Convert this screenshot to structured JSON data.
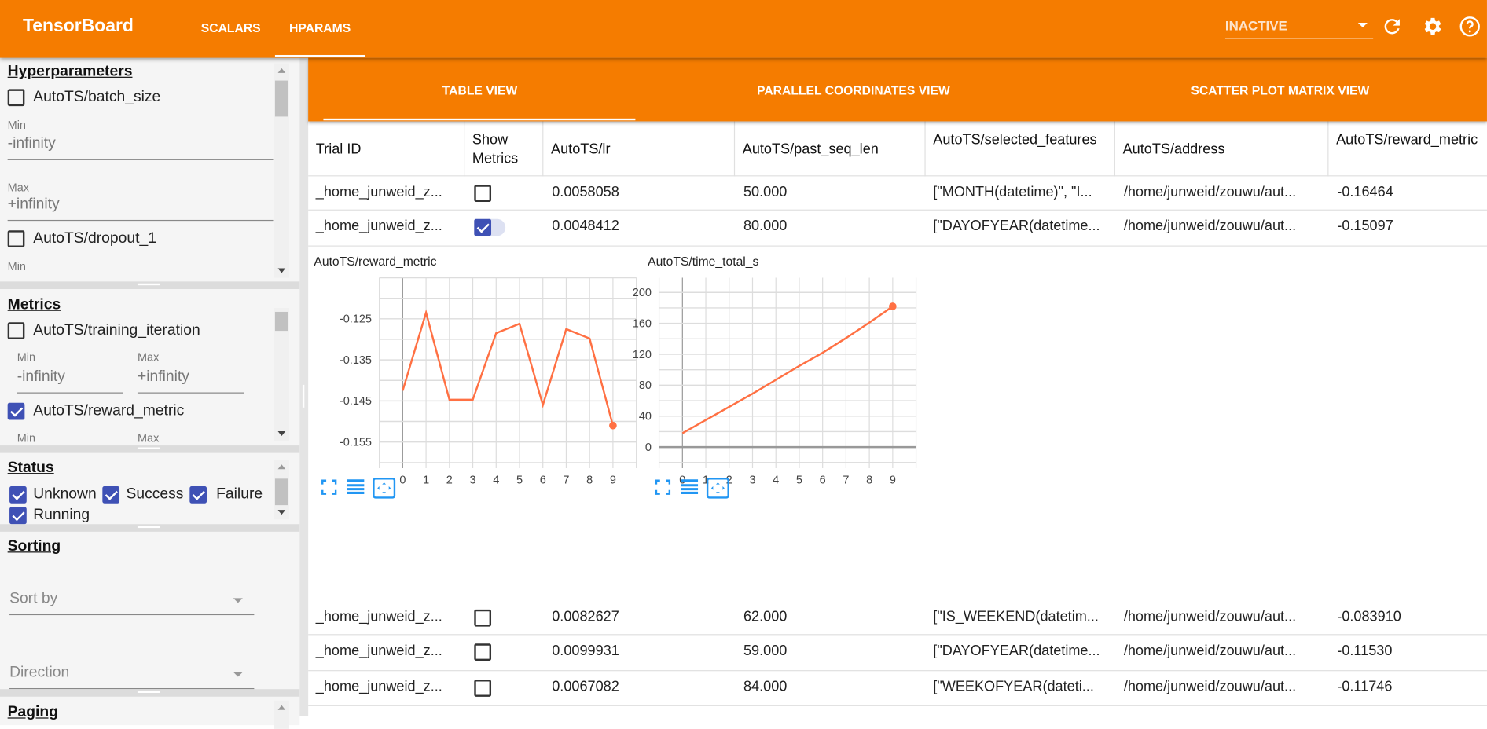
{
  "header": {
    "brand": "TensorBoard",
    "tabs": [
      {
        "label": "SCALARS",
        "active": false
      },
      {
        "label": "HPARAMS",
        "active": true
      }
    ],
    "run_select": "INACTIVE",
    "icons": [
      "refresh-icon",
      "settings-gear-icon",
      "help-icon"
    ]
  },
  "sidebar": {
    "hyperparameters": {
      "title": "Hyperparameters",
      "items": [
        {
          "label": "AutoTS/batch_size",
          "checked": false,
          "min_label": "Min",
          "min": "-infinity",
          "max_label": "Max",
          "max": "+infinity"
        },
        {
          "label": "AutoTS/dropout_1",
          "checked": false,
          "min_label": "Min"
        }
      ]
    },
    "metrics": {
      "title": "Metrics",
      "items": [
        {
          "label": "AutoTS/training_iteration",
          "checked": false,
          "min_label": "Min",
          "min": "-infinity",
          "max_label": "Max",
          "max": "+infinity"
        },
        {
          "label": "AutoTS/reward_metric",
          "checked": true,
          "min_label": "Min",
          "max_label": "Max"
        }
      ]
    },
    "status": {
      "title": "Status",
      "items": [
        {
          "label": "Unknown",
          "checked": true
        },
        {
          "label": "Success",
          "checked": true
        },
        {
          "label": "Failure",
          "checked": true
        },
        {
          "label": "Running",
          "checked": true
        }
      ]
    },
    "sorting": {
      "title": "Sorting",
      "sort_by": "Sort by",
      "direction": "Direction"
    },
    "paging": {
      "title": "Paging"
    }
  },
  "subtabs": [
    {
      "label": "TABLE VIEW",
      "active": true
    },
    {
      "label": "PARALLEL COORDINATES VIEW",
      "active": false
    },
    {
      "label": "SCATTER PLOT MATRIX VIEW",
      "active": false
    }
  ],
  "table": {
    "headers": [
      "Trial ID",
      "Show Metrics",
      "AutoTS/lr",
      "AutoTS/past_seq_len",
      "AutoTS/selected_features",
      "AutoTS/address",
      "AutoTS/reward_metric"
    ],
    "rows": [
      {
        "trial": "_home_junweid_z...",
        "show": false,
        "lr": "0.0058058",
        "past_seq_len": "50.000",
        "features": "[\"MONTH(datetime)\", \"I...",
        "address": "/home/junweid/zouwu/aut...",
        "reward": "-0.16464"
      },
      {
        "trial": "_home_junweid_z...",
        "show": true,
        "lr": "0.0048412",
        "past_seq_len": "80.000",
        "features": "[\"DAYOFYEAR(datetime...",
        "address": "/home/junweid/zouwu/aut...",
        "reward": "-0.15097"
      },
      {
        "trial": "_home_junweid_z...",
        "show": false,
        "lr": "0.0082627",
        "past_seq_len": "62.000",
        "features": "[\"IS_WEEKEND(datetim...",
        "address": "/home/junweid/zouwu/aut...",
        "reward": "-0.083910"
      },
      {
        "trial": "_home_junweid_z...",
        "show": false,
        "lr": "0.0099931",
        "past_seq_len": "59.000",
        "features": "[\"DAYOFYEAR(datetime...",
        "address": "/home/junweid/zouwu/aut...",
        "reward": "-0.11530"
      },
      {
        "trial": "_home_junweid_z...",
        "show": false,
        "lr": "0.0067082",
        "past_seq_len": "84.000",
        "features": "[\"WEEKOFYEAR(dateti...",
        "address": "/home/junweid/zouwu/aut...",
        "reward": "-0.11746"
      }
    ]
  },
  "colors": {
    "accent": "#f57c00",
    "line": "#ff7043",
    "checkbox": "#3f51b5",
    "tool": "#2196f3"
  },
  "chart_data": [
    {
      "type": "line",
      "title": "AutoTS/reward_metric",
      "x": [
        0,
        1,
        2,
        3,
        4,
        5,
        6,
        7,
        8,
        9
      ],
      "y": [
        -0.1425,
        -0.1235,
        -0.1447,
        -0.1447,
        -0.1285,
        -0.1262,
        -0.146,
        -0.1275,
        -0.1298,
        -0.151
      ],
      "xlim": [
        -1,
        10
      ],
      "ylim": [
        -0.16,
        -0.115
      ],
      "yticks": [
        -0.125,
        -0.135,
        -0.145,
        -0.155
      ],
      "ytick_labels": [
        "-0.125",
        "-0.135",
        "-0.145",
        "-0.155"
      ],
      "xticks": [
        0,
        1,
        2,
        3,
        4,
        5,
        6,
        7,
        8,
        9
      ],
      "grid": true
    },
    {
      "type": "line",
      "title": "AutoTS/time_total_s",
      "x": [
        0,
        1,
        2,
        3,
        4,
        5,
        6,
        7,
        8,
        9
      ],
      "y": [
        18,
        35,
        52,
        69,
        87,
        105,
        122,
        141,
        161,
        182
      ],
      "xlim": [
        -1,
        10
      ],
      "ylim": [
        -20,
        219
      ],
      "yticks": [
        0,
        40,
        80,
        120,
        160,
        200
      ],
      "ytick_labels": [
        "0",
        "40",
        "80",
        "120",
        "160",
        "200"
      ],
      "xticks": [
        0,
        1,
        2,
        3,
        4,
        5,
        6,
        7,
        8,
        9
      ],
      "grid": true
    }
  ],
  "chart_tools": [
    "fullscreen-icon",
    "toggle-log-scale-icon",
    "fit-domain-icon"
  ]
}
